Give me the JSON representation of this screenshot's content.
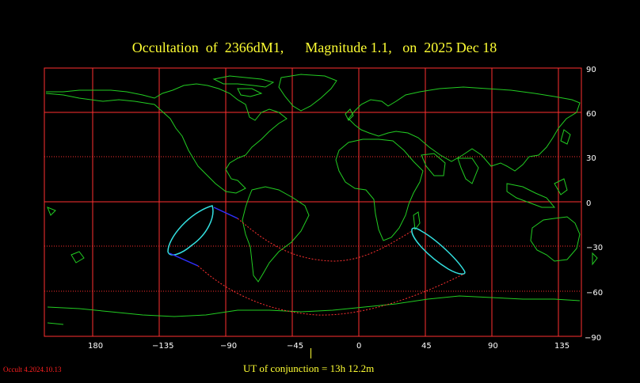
{
  "title": "Occultation  of  2366dM1,      Magnitude 1.1,   on  2025 Dec 18",
  "map": {
    "lon_ticks": [
      "180",
      "−135",
      "−90",
      "−45",
      "0",
      "45",
      "90",
      "135"
    ],
    "lat_ticks": [
      "90",
      "60",
      "30",
      "0",
      "−30",
      "−60",
      "−90"
    ],
    "grid_color": "#ff3030",
    "coast_color": "#22cc22",
    "path_color": "#33e0e0",
    "limit_color": "#ff3030",
    "shadow_color": "#3030ff"
  },
  "footer": {
    "ut_conjunction": "UT of conjunction = 13h 12.2m",
    "version": "Occult 4.2024.10.13"
  }
}
